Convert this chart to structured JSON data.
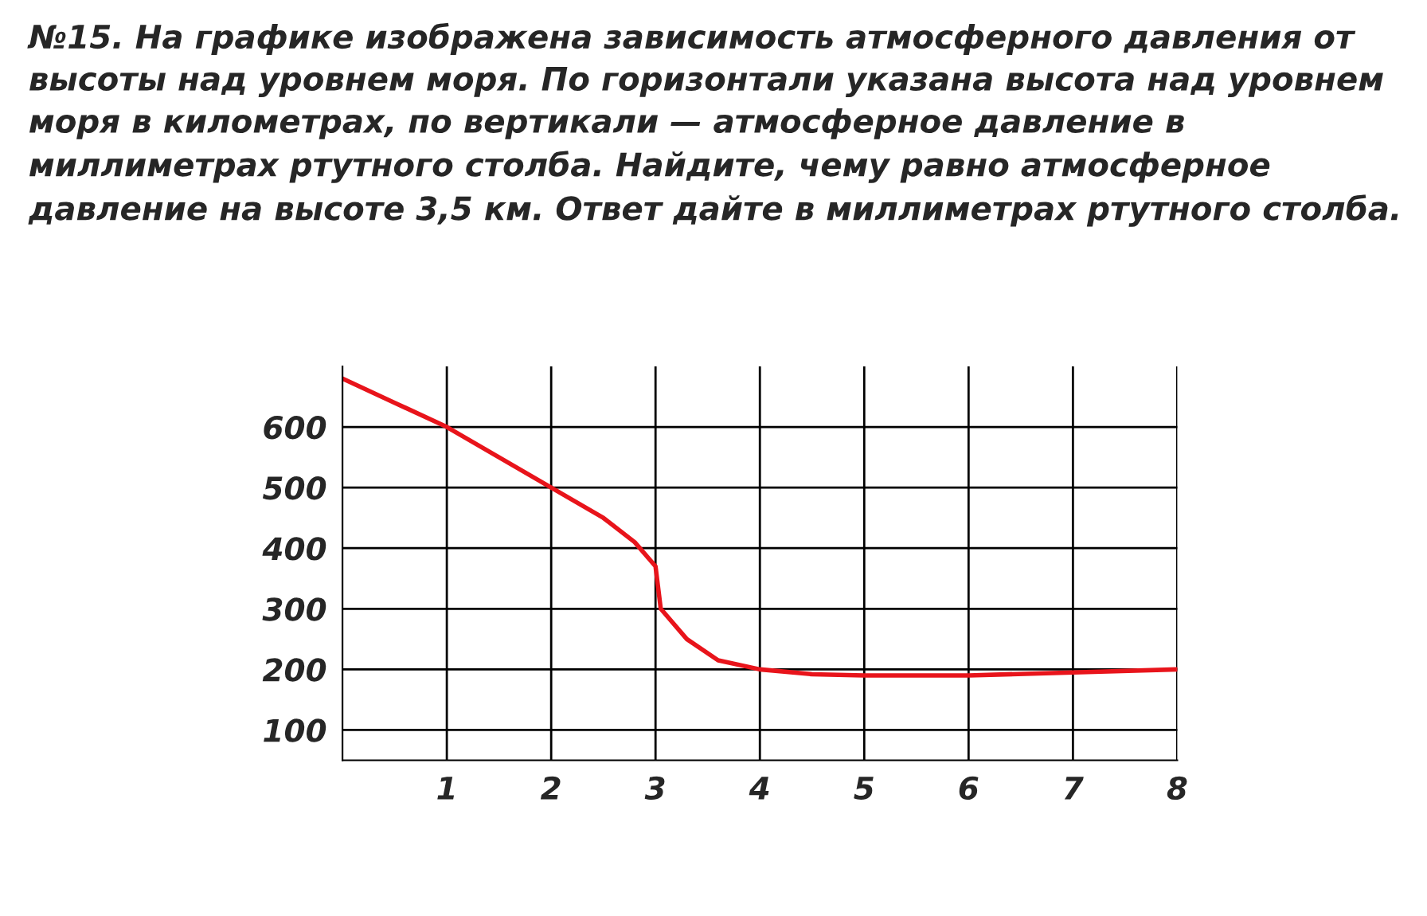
{
  "chart_data": {
    "type": "line",
    "title": "№15. На графике изображена зависимость атмосферного давления от высоты над уровнем моря. По горизонтали указана высота над уровнем моря в километрах, по вертикали — атмосферное давление в миллиметрах ртутного столба. Найдите, чему равно атмосферное давление на высоте 3,5 км. Ответ дайте в миллиметрах ртутного столба.",
    "x": [
      0,
      0.5,
      1,
      1.5,
      2,
      2.5,
      2.8,
      3,
      3.05,
      3.3,
      3.6,
      4,
      4.5,
      5,
      6,
      7,
      8
    ],
    "series": [
      {
        "color": "#e8141b",
        "values": [
          680,
          640,
          600,
          550,
          500,
          450,
          410,
          370,
          300,
          250,
          215,
          200,
          192,
          190,
          190,
          195,
          200
        ]
      }
    ],
    "xlim": [
      0,
      8
    ],
    "ylim": [
      50,
      700
    ],
    "xticks": [
      1,
      2,
      3,
      4,
      5,
      6,
      7,
      8
    ],
    "yticks": [
      100,
      200,
      300,
      400,
      500,
      600
    ],
    "grid": true,
    "marker": "none",
    "line_style": "solid"
  }
}
